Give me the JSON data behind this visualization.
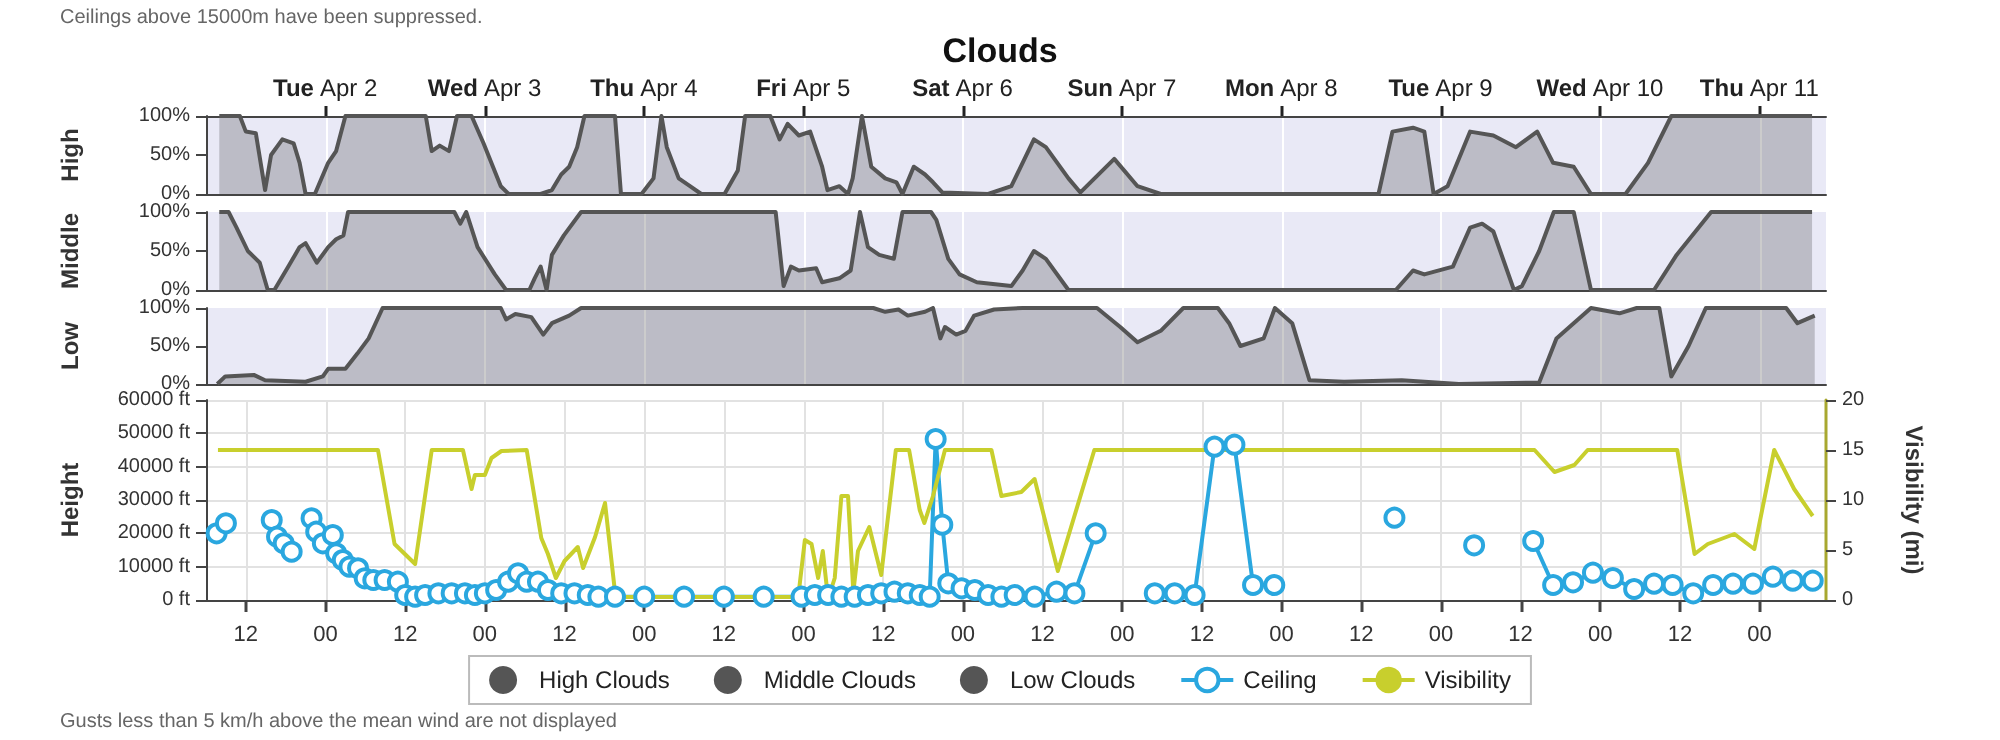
{
  "chart_data": [
    {
      "type": "area",
      "title": "Clouds",
      "annotations": [
        "Ceilings above 15000m have been suppressed."
      ],
      "ylabel": "High",
      "xlim": [
        "--04-01T06:00",
        "--04-11T10:00"
      ],
      "x2lim": [
        "--04-01T06:00",
        "--04-11T10:00"
      ],
      "xticks": [
        {
          "value": "--04-02T00:00",
          "label": null
        },
        {
          "value": "--04-03T00:00",
          "label": null
        },
        {
          "value": "--04-04T00:00",
          "label": null
        },
        {
          "value": "--04-05T00:00",
          "label": null
        },
        {
          "value": "--04-06T00:00",
          "label": null
        },
        {
          "value": "--04-07T00:00",
          "label": null
        },
        {
          "value": "--04-08T00:00",
          "label": null
        },
        {
          "value": "--04-09T00:00",
          "label": null
        },
        {
          "value": "--04-10T00:00",
          "label": null
        },
        {
          "value": "--04-11T00:00",
          "label": null
        }
      ],
      "x2ticks": [
        {
          "value": "--04-02T00:00",
          "label": "Tue Apr 2"
        },
        {
          "value": "--04-03T00:00",
          "label": "Wed Apr 3"
        },
        {
          "value": "--04-04T00:00",
          "label": "Thu Apr 4"
        },
        {
          "value": "--04-05T00:00",
          "label": "Fri Apr 5"
        },
        {
          "value": "--04-06T00:00",
          "label": "Sat Apr 6"
        },
        {
          "value": "--04-07T00:00",
          "label": "Sun Apr 7"
        },
        {
          "value": "--04-08T00:00",
          "label": "Mon Apr 8"
        },
        {
          "value": "--04-09T00:00",
          "label": "Tue Apr 9"
        },
        {
          "value": "--04-10T00:00",
          "label": "Wed Apr 10"
        },
        {
          "value": "--04-11T00:00",
          "label": "Thu Apr 11"
        }
      ],
      "ylim": [
        0,
        100
      ],
      "yticks": [
        {
          "value": 0,
          "label": "0%"
        },
        {
          "value": 50,
          "label": "50%"
        },
        {
          "value": 100,
          "label": "100%"
        }
      ],
      "grid": "x",
      "tick_labels": "y",
      "series": [
        {
          "name": "High Clouds",
          "color": "#555555",
          "x": [
            "--04-01T08:00",
            "--04-01T11:06",
            "--04-01T12:00",
            "--04-01T13:30",
            "--04-01T14:54",
            "--04-01T15:48",
            "--04-01T17:30",
            "--04-01T19:12",
            "--04-01T20:06",
            "--04-01T21:00",
            "--04-01T22:24",
            "--04-02T00:24",
            "--04-02T01:36",
            "--04-02T03:00",
            "--04-02T15:06",
            "--04-02T16:00",
            "--04-02T17:12",
            "--04-02T18:36",
            "--04-02T19:48",
            "--04-02T22:00",
            "--04-02T23:48",
            "--04-03T02:24",
            "--04-03T03:36",
            "--04-03T08:24",
            "--04-03T10:06",
            "--04-03T11:30",
            "--04-03T12:42",
            "--04-03T13:54",
            "--04-03T15:00",
            "--04-03T19:36",
            "--04-03T20:30",
            "--04-03T23:36",
            "--04-04T01:24",
            "--04-04T02:36",
            "--04-04T03:24",
            "--04-04T05:12",
            "--04-04T06:54",
            "--04-04T08:36",
            "--04-04T12:06",
            "--04-04T14:06",
            "--04-04T15:12",
            "--04-04T19:00",
            "--04-04T20:24",
            "--04-04T21:36",
            "--04-04T23:18",
            "--04-05T01:00",
            "--04-05T02:48",
            "--04-05T03:36",
            "--04-05T05:24",
            "--04-05T06:42",
            "--04-05T07:24",
            "--04-05T08:48",
            "--04-05T10:12",
            "--04-05T12:18",
            "--04-05T14:00",
            "--04-05T14:54",
            "--04-05T16:36",
            "--04-05T18:18",
            "--04-05T19:30",
            "--04-05T20:54",
            "--04-06T03:48",
            "--04-06T07:18",
            "--04-06T10:42",
            "--04-06T12:30",
            "--04-06T15:54",
            "--04-06T17:42",
            "--04-06T22:48",
            "--04-07T02:18",
            "--04-07T05:48",
            "--04-08T14:36",
            "--04-08T16:42",
            "--04-08T19:48",
            "--04-08T21:30",
            "--04-08T22:54",
            "--04-09T01:00",
            "--04-09T04:24",
            "--04-09T07:54",
            "--04-09T11:18",
            "--04-09T14:30",
            "--04-09T16:54",
            "--04-09T20:00",
            "--04-09T22:36",
            "--04-10T03:48",
            "--04-10T07:12",
            "--04-10T10:42",
            "--04-10T15:00",
            "--04-11T07:54"
          ],
          "values": [
            100,
            100,
            80,
            78,
            5,
            50,
            70,
            65,
            40,
            0,
            0,
            40,
            55,
            100,
            100,
            55,
            62,
            55,
            100,
            100,
            65,
            10,
            0,
            0,
            5,
            25,
            35,
            60,
            100,
            100,
            0,
            0,
            20,
            100,
            60,
            20,
            10,
            0,
            0,
            30,
            100,
            100,
            70,
            90,
            75,
            80,
            35,
            5,
            10,
            0,
            20,
            100,
            35,
            20,
            15,
            0,
            35,
            25,
            15,
            2,
            0,
            10,
            70,
            60,
            20,
            2,
            45,
            10,
            0,
            0,
            80,
            85,
            80,
            0,
            10,
            80,
            75,
            60,
            80,
            40,
            35,
            0,
            0,
            40,
            100,
            100,
            100
          ]
        }
      ]
    },
    {
      "type": "area",
      "ylabel": "Middle",
      "xlim": [
        "--04-01T06:00",
        "--04-11T10:00"
      ],
      "xticks": [
        {
          "value": "--04-02T00:00",
          "label": null
        },
        {
          "value": "--04-03T00:00",
          "label": null
        },
        {
          "value": "--04-04T00:00",
          "label": null
        },
        {
          "value": "--04-05T00:00",
          "label": null
        },
        {
          "value": "--04-06T00:00",
          "label": null
        },
        {
          "value": "--04-07T00:00",
          "label": null
        },
        {
          "value": "--04-08T00:00",
          "label": null
        },
        {
          "value": "--04-09T00:00",
          "label": null
        },
        {
          "value": "--04-10T00:00",
          "label": null
        },
        {
          "value": "--04-11T00:00",
          "label": null
        }
      ],
      "ylim": [
        0,
        100
      ],
      "yticks": [
        {
          "value": 0,
          "label": "0%"
        },
        {
          "value": 50,
          "label": "50%"
        },
        {
          "value": 100,
          "label": "100%"
        }
      ],
      "grid": "x",
      "tick_labels": "y",
      "series": [
        {
          "name": "Middle Clouds",
          "color": "#555555",
          "x": [
            "--04-01T08:00",
            "--04-01T09:24",
            "--04-01T10:36",
            "--04-01T12:18",
            "--04-01T14:06",
            "--04-01T15:18",
            "--04-01T16:18",
            "--04-01T18:24",
            "--04-01T20:06",
            "--04-01T21:00",
            "--04-01T22:42",
            "--04-02T00:24",
            "--04-02T01:36",
            "--04-02T02:42",
            "--04-02T03:24",
            "--04-02T19:24",
            "--04-02T20:18",
            "--04-02T21:12",
            "--04-02T22:54",
            "--04-03T01:30",
            "--04-03T03:12",
            "--04-03T06:42",
            "--04-03T07:30",
            "--04-03T08:24",
            "--04-03T09:18",
            "--04-03T10:06",
            "--04-03T11:54",
            "--04-03T14:30",
            "--04-04T19:48",
            "--04-04T21:00",
            "--04-04T22:06",
            "--04-04T23:18",
            "--04-05T01:54",
            "--04-05T02:48",
            "--04-05T05:24",
            "--04-05T07:06",
            "--04-05T08:30",
            "--04-05T09:42",
            "--04-05T11:24",
            "--04-05T13:36",
            "--04-05T14:54",
            "--04-05T19:12",
            "--04-05T20:00",
            "--04-05T21:48",
            "--04-05T23:30",
            "--04-06T02:06",
            "--04-06T07:18",
            "--04-06T09:00",
            "--04-06T10:42",
            "--04-06T12:30",
            "--04-06T15:54",
            "--04-08T17:12",
            "--04-08T19:48",
            "--04-08T21:30",
            "--04-09T01:48",
            "--04-09T04:24",
            "--04-09T06:12",
            "--04-09T07:54",
            "--04-09T11:00",
            "--04-09T12:12",
            "--04-09T14:48",
            "--04-09T17:00",
            "--04-09T20:00",
            "--04-09T22:36",
            "--04-10T08:06",
            "--04-10T11:30",
            "--04-10T16:42",
            "--04-11T07:54"
          ],
          "values": [
            100,
            100,
            80,
            50,
            35,
            0,
            0,
            30,
            55,
            60,
            35,
            55,
            65,
            70,
            100,
            100,
            85,
            100,
            55,
            20,
            0,
            0,
            15,
            30,
            0,
            45,
            70,
            100,
            100,
            5,
            30,
            25,
            28,
            10,
            15,
            25,
            100,
            55,
            45,
            40,
            100,
            100,
            90,
            40,
            20,
            10,
            5,
            25,
            50,
            40,
            0,
            0,
            25,
            20,
            30,
            80,
            85,
            75,
            0,
            5,
            50,
            100,
            100,
            0,
            0,
            45,
            100,
            100
          ]
        }
      ]
    },
    {
      "type": "area",
      "ylabel": "Low",
      "xlim": [
        "--04-01T06:00",
        "--04-11T10:00"
      ],
      "xticks": [
        {
          "value": "--04-02T00:00",
          "label": null
        },
        {
          "value": "--04-03T00:00",
          "label": null
        },
        {
          "value": "--04-04T00:00",
          "label": null
        },
        {
          "value": "--04-05T00:00",
          "label": null
        },
        {
          "value": "--04-06T00:00",
          "label": null
        },
        {
          "value": "--04-07T00:00",
          "label": null
        },
        {
          "value": "--04-08T00:00",
          "label": null
        },
        {
          "value": "--04-09T00:00",
          "label": null
        },
        {
          "value": "--04-10T00:00",
          "label": null
        },
        {
          "value": "--04-11T00:00",
          "label": null
        }
      ],
      "ylim": [
        0,
        100
      ],
      "yticks": [
        {
          "value": 0,
          "label": "0%"
        },
        {
          "value": 50,
          "label": "50%"
        },
        {
          "value": 100,
          "label": "100%"
        }
      ],
      "grid": "x",
      "tick_labels": "y",
      "series": [
        {
          "name": "Low Clouds",
          "color": "#555555",
          "x": [
            "--04-01T07:42",
            "--04-01T08:54",
            "--04-01T13:12",
            "--04-01T14:54",
            "--04-01T21:00",
            "--04-01T23:36",
            "--04-02T00:24",
            "--04-02T03:00",
            "--04-02T04:48",
            "--04-02T06:30",
            "--04-02T08:36",
            "--04-03T02:24",
            "--04-03T03:12",
            "--04-03T04:36",
            "--04-03T07:00",
            "--04-03T08:48",
            "--04-03T10:06",
            "--04-03T12:42",
            "--04-03T14:30",
            "--04-05T10:30",
            "--04-05T12:18",
            "--04-05T14:18",
            "--04-05T15:42",
            "--04-05T18:18",
            "--04-05T19:30",
            "--04-05T20:36",
            "--04-05T21:18",
            "--04-05T23:00",
            "--04-06T00:24",
            "--04-06T01:42",
            "--04-06T04:42",
            "--04-06T09:00",
            "--04-06T20:12",
            "--04-06T23:42",
            "--04-07T02:18",
            "--04-07T05:48",
            "--04-07T09:12",
            "--04-07T14:24",
            "--04-07T16:06",
            "--04-07T17:48",
            "--04-07T21:18",
            "--04-07T23:00",
            "--04-08T01:36",
            "--04-08T04:12",
            "--04-08T09:24",
            "--04-08T18:06",
            "--04-09T02:42",
            "--04-09T14:48",
            "--04-09T17:24",
            "--04-09T20:00",
            "--04-09T22:36",
            "--04-10T02:54",
            "--04-10T05:30",
            "--04-10T08:54",
            "--04-10T10:42",
            "--04-10T13:18",
            "--04-10T15:54",
            "--04-11T04:00",
            "--04-11T05:42",
            "--04-11T08:18"
          ],
          "values": [
            0,
            10,
            12,
            5,
            3,
            10,
            20,
            20,
            40,
            60,
            100,
            100,
            85,
            92,
            88,
            65,
            80,
            90,
            100,
            100,
            95,
            98,
            90,
            95,
            100,
            60,
            75,
            65,
            70,
            90,
            98,
            100,
            100,
            75,
            55,
            70,
            100,
            100,
            80,
            50,
            60,
            100,
            80,
            5,
            3,
            5,
            0,
            2,
            60,
            80,
            100,
            93,
            100,
            100,
            10,
            50,
            100,
            100,
            80,
            90
          ]
        }
      ]
    },
    {
      "type": "line",
      "ylabel": "Height",
      "y2label": "Visibility (mi)",
      "annotations": [
        "Gusts less than 5 km/h above the mean wind are not displayed"
      ],
      "legend": "bottom",
      "grid": true,
      "xlim": [
        "--04-01T06:00",
        "--04-11T10:00"
      ],
      "xticks": [
        {
          "value": "--04-01T12:00",
          "label": "12"
        },
        {
          "value": "--04-02T00:00",
          "label": "00"
        },
        {
          "value": "--04-02T12:00",
          "label": "12"
        },
        {
          "value": "--04-03T00:00",
          "label": "00"
        },
        {
          "value": "--04-03T12:00",
          "label": "12"
        },
        {
          "value": "--04-04T00:00",
          "label": "00"
        },
        {
          "value": "--04-04T12:00",
          "label": "12"
        },
        {
          "value": "--04-05T00:00",
          "label": "00"
        },
        {
          "value": "--04-05T12:00",
          "label": "12"
        },
        {
          "value": "--04-06T00:00",
          "label": "00"
        },
        {
          "value": "--04-06T12:00",
          "label": "12"
        },
        {
          "value": "--04-07T00:00",
          "label": "00"
        },
        {
          "value": "--04-07T12:00",
          "label": "12"
        },
        {
          "value": "--04-08T00:00",
          "label": "00"
        },
        {
          "value": "--04-08T12:00",
          "label": "12"
        },
        {
          "value": "--04-09T00:00",
          "label": "00"
        },
        {
          "value": "--04-09T12:00",
          "label": "12"
        },
        {
          "value": "--04-10T00:00",
          "label": "00"
        },
        {
          "value": "--04-10T12:00",
          "label": "12"
        },
        {
          "value": "--04-11T00:00",
          "label": "00"
        }
      ],
      "ylim": [
        0,
        60000
      ],
      "yticks": [
        {
          "value": 0,
          "label": "0 ft"
        },
        {
          "value": 10000,
          "label": "10000 ft"
        },
        {
          "value": 20000,
          "label": "20000 ft"
        },
        {
          "value": 30000,
          "label": "30000 ft"
        },
        {
          "value": 40000,
          "label": "40000 ft"
        },
        {
          "value": 50000,
          "label": "50000 ft"
        },
        {
          "value": 60000,
          "label": "60000 ft"
        }
      ],
      "y2lim": [
        0,
        20
      ],
      "y2ticks": [
        0,
        5,
        10,
        15,
        20
      ],
      "series": [
        {
          "name": "Ceiling",
          "color": "#2aa7df",
          "marker": "circle",
          "x": [
            "--04-01T07:36",
            "--04-01T09:00",
            "--04-01T12:00",
            "--04-01T15:54",
            "--04-01T16:42",
            "--04-01T17:42",
            "--04-01T18:54",
            "--04-01T20:00",
            "--04-01T21:54",
            "--04-01T22:36",
            "--04-01T23:36",
            "--04-02T01:06",
            "--04-02T01:36",
            "--04-02T02:36",
            "--04-02T03:36",
            "--04-02T04:54",
            "--04-02T05:54",
            "--04-02T07:12",
            "--04-02T08:54",
            "--04-02T10:54",
            "--04-02T12:00",
            "--04-02T13:30",
            "--04-02T15:00",
            "--04-02T17:00",
            "--04-02T19:00",
            "--04-02T21:00",
            "--04-02T22:30",
            "--04-03T00:00",
            "--04-03T01:42",
            "--04-03T03:30",
            "--04-03T05:00",
            "--04-03T06:18",
            "--04-03T08:00",
            "--04-03T09:30",
            "--04-03T11:30",
            "--04-03T13:30",
            "--04-03T15:30",
            "--04-03T17:06",
            "--04-03T19:36",
            "--04-04T00:00",
            "--04-04T06:00",
            "--04-04T12:00",
            "--04-04T18:00",
            "--04-04T23:42",
            "--04-05T01:42",
            "--04-05T03:42",
            "--04-05T05:42",
            "--04-05T07:42",
            "--04-05T09:42",
            "--04-05T11:42",
            "--04-05T13:42",
            "--04-05T15:42",
            "--04-05T17:30",
            "--04-05T19:00",
            "--04-05T19:54",
            "--04-05T20:54",
            "--04-05T21:48",
            "--04-05T23:48",
            "--04-06T01:48",
            "--04-06T03:48",
            "--04-06T05:48",
            "--04-06T07:48",
            "--04-06T10:48",
            "--04-06T14:06",
            "--04-06T16:48",
            "--04-06T20:00",
            "--04-07T00:00",
            "--04-07T04:54",
            "--04-07T07:54",
            "--04-07T10:54",
            "--04-07T13:54",
            "--04-07T16:54",
            "--04-07T19:42",
            "--04-07T22:54",
            "--04-08T07:00",
            "--04-08T17:00",
            "--04-08T22:00",
            "--04-09T05:00",
            "--04-09T08:00",
            "--04-09T13:54",
            "--04-09T16:54",
            "--04-09T19:54",
            "--04-09T22:54",
            "--04-10T01:54",
            "--04-10T05:06",
            "--04-10T08:06",
            "--04-10T10:54",
            "--04-10T14:00",
            "--04-10T17:00",
            "--04-10T20:00",
            "--04-10T23:00",
            "--04-11T02:00",
            "--04-11T05:00",
            "--04-11T08:00"
          ],
          "values": [
            20000,
            23000,
            null,
            24000,
            19000,
            17000,
            14500,
            null,
            24500,
            20500,
            17000,
            19500,
            14000,
            12000,
            10000,
            9500,
            6500,
            6000,
            6000,
            5500,
            1500,
            1000,
            1500,
            2000,
            2000,
            2000,
            1500,
            2000,
            3000,
            5500,
            8000,
            5500,
            5500,
            3000,
            2000,
            2000,
            1500,
            1000,
            1000,
            1000,
            1000,
            1000,
            1000,
            1000,
            1500,
            1500,
            1000,
            1000,
            1500,
            2000,
            2500,
            2000,
            1500,
            1000,
            48300,
            22600,
            5000,
            3500,
            3000,
            1500,
            1000,
            1500,
            1000,
            2500,
            2000,
            20000,
            null,
            2000,
            2000,
            1500,
            46000,
            46600,
            4500,
            4500,
            null,
            24700,
            null,
            16400,
            null,
            17700,
            4500,
            5300,
            8200,
            6600,
            3300,
            4900,
            4500,
            2000,
            4500,
            4900,
            4900,
            7000,
            5800,
            5800
          ]
        },
        {
          "name": "Visibility",
          "color": "#c8cf2d",
          "axis": "y2",
          "marker": "none",
          "x": [
            "--04-01T07:48",
            "--04-02T07:54",
            "--04-02T10:24",
            "--04-02T13:30",
            "--04-02T16:00",
            "--04-02T20:42",
            "--04-02T22:00",
            "--04-02T22:30",
            "--04-03T00:00",
            "--04-03T01:00",
            "--04-03T02:30",
            "--04-03T06:18",
            "--04-03T08:30",
            "--04-03T09:30",
            "--04-03T10:42",
            "--04-03T12:00",
            "--04-03T14:00",
            "--04-03T14:48",
            "--04-03T16:36",
            "--04-03T18:06",
            "--04-03T19:36",
            "--04-03T20:06",
            "--04-04T23:12",
            "--04-05T00:12",
            "--04-05T01:12",
            "--04-05T02:12",
            "--04-05T02:54",
            "--04-05T03:42",
            "--04-05T04:42",
            "--04-05T05:42",
            "--04-05T06:42",
            "--04-05T07:30",
            "--04-05T08:12",
            "--04-05T09:54",
            "--04-05T11:42",
            "--04-05T13:54",
            "--04-05T15:54",
            "--04-05T17:30",
            "--04-05T18:12",
            "--04-05T19:30",
            "--04-05T21:18",
            "--04-06T04:18",
            "--04-06T05:48",
            "--04-06T08:48",
            "--04-06T10:48",
            "--04-06T14:18",
            "--04-06T19:48",
            "--04-09T14:06",
            "--04-09T17:06",
            "--04-09T20:06",
            "--04-09T22:06",
            "--04-10T11:36",
            "--04-10T14:12",
            "--04-10T16:12",
            "--04-10T20:12",
            "--04-10T23:12",
            "--04-11T02:12",
            "--04-11T05:12",
            "--04-11T08:00"
          ],
          "values": [
            15,
            15,
            5.6,
            3.6,
            15,
            15,
            11.1,
            12.5,
            12.5,
            14.2,
            14.9,
            15,
            6.2,
            4.6,
            2.2,
            3.9,
            5.3,
            3.2,
            6.3,
            9.7,
            0.8,
            0.3,
            0.3,
            6,
            5.6,
            2.2,
            4.9,
            0.1,
            2.2,
            10.4,
            10.4,
            0.8,
            4.9,
            7.3,
            2.5,
            15,
            15,
            9,
            7.7,
            10.4,
            15,
            15,
            10.4,
            10.8,
            12.1,
            2.9,
            15,
            15,
            12.8,
            13.5,
            15,
            15,
            4.6,
            5.6,
            6.6,
            5.1,
            15,
            11.1,
            8.4
          ]
        }
      ]
    }
  ]
}
